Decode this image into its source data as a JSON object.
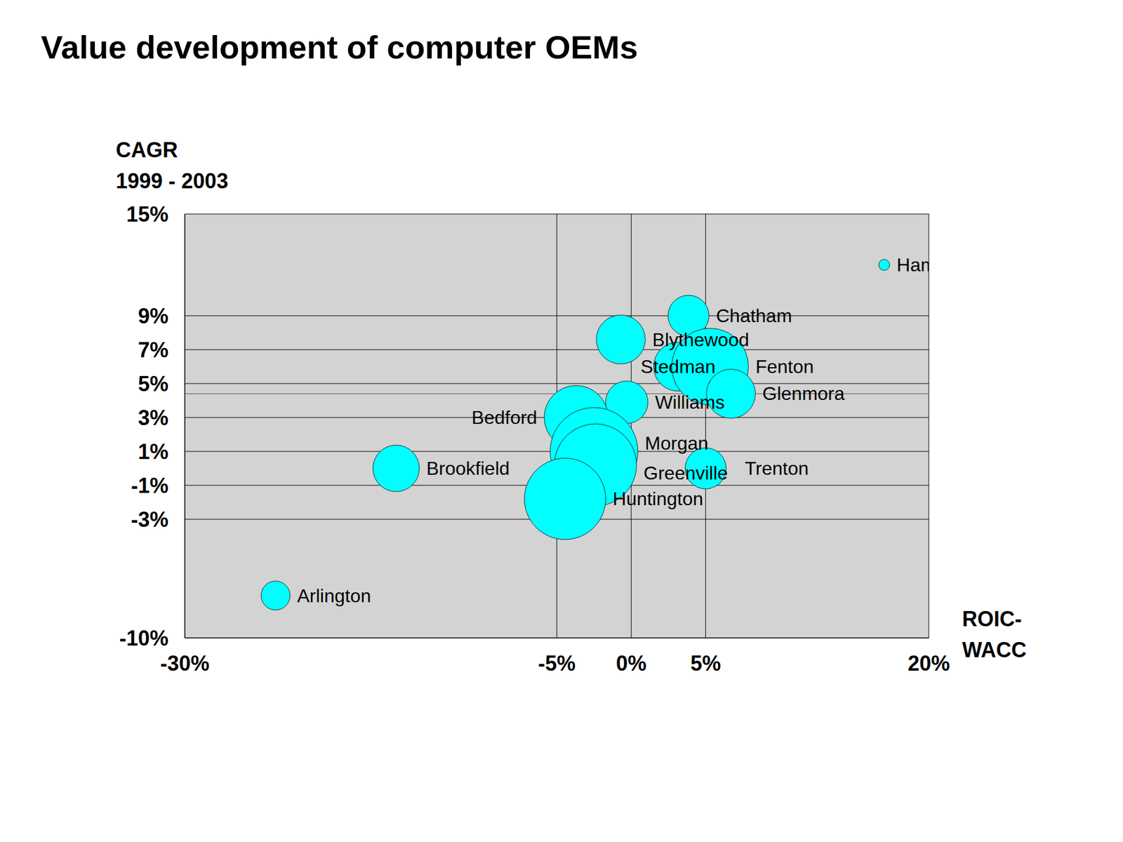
{
  "chart_data": {
    "type": "bubble",
    "title": "Value development of computer OEMs",
    "x_label": [
      "ROIC-",
      "WACC"
    ],
    "y_label": [
      "CAGR",
      "1999 - 2003"
    ],
    "xlim": [
      -30,
      20
    ],
    "xticks": [
      {
        "value": -30,
        "label": "-30%"
      },
      {
        "value": -5,
        "label": "-5%"
      },
      {
        "value": 0,
        "label": "0%"
      },
      {
        "value": 5,
        "label": "5%"
      },
      {
        "value": 20,
        "label": "20%"
      }
    ],
    "ylim": [
      -10,
      15
    ],
    "yticks": [
      {
        "value": -10,
        "label": "-10%"
      },
      {
        "value": -3,
        "label": "-3%"
      },
      {
        "value": -1,
        "label": "-1%"
      },
      {
        "value": 1,
        "label": "1%"
      },
      {
        "value": 3,
        "label": "3%"
      },
      {
        "value": 5,
        "label": "5%"
      },
      {
        "value": 7,
        "label": "7%"
      },
      {
        "value": 9,
        "label": "9%"
      },
      {
        "value": 15,
        "label": "15%"
      }
    ],
    "grid": true,
    "color": "#00ffff",
    "reference_line": 4.4,
    "points": [
      {
        "label": "Hammond",
        "x": 17,
        "y": 12,
        "size": 1
      },
      {
        "label": "Chatham",
        "x": 3.85,
        "y": 9,
        "size": 14
      },
      {
        "label": "Blythewood",
        "x": -0.7,
        "y": 7.6,
        "size": 20
      },
      {
        "label": "Stedman",
        "x": 3.15,
        "y": 6,
        "size": 20
      },
      {
        "label": "Fenton",
        "x": 5.3,
        "y": 6,
        "size": 49
      },
      {
        "label": "Glenmora",
        "x": 6.7,
        "y": 4.4,
        "size": 20
      },
      {
        "label": "Williams",
        "x": -0.3,
        "y": 3.9,
        "size": 15
      },
      {
        "label": "Bedford",
        "x": -3.7,
        "y": 3,
        "size": 34
      },
      {
        "label": "Morgan",
        "x": -2.5,
        "y": 1,
        "size": 64
      },
      {
        "label": "Greenville",
        "x": -2.4,
        "y": 0.2,
        "size": 56
      },
      {
        "label": "Huntington",
        "x": -4.45,
        "y": -1.8,
        "size": 55
      },
      {
        "label": "Brookfield",
        "x": -15.8,
        "y": 0,
        "size": 18
      },
      {
        "label": "Trenton",
        "x": 5,
        "y": 0,
        "size": 14
      },
      {
        "label": "Arlington",
        "x": -23.9,
        "y": -7.5,
        "size": 7
      }
    ]
  }
}
